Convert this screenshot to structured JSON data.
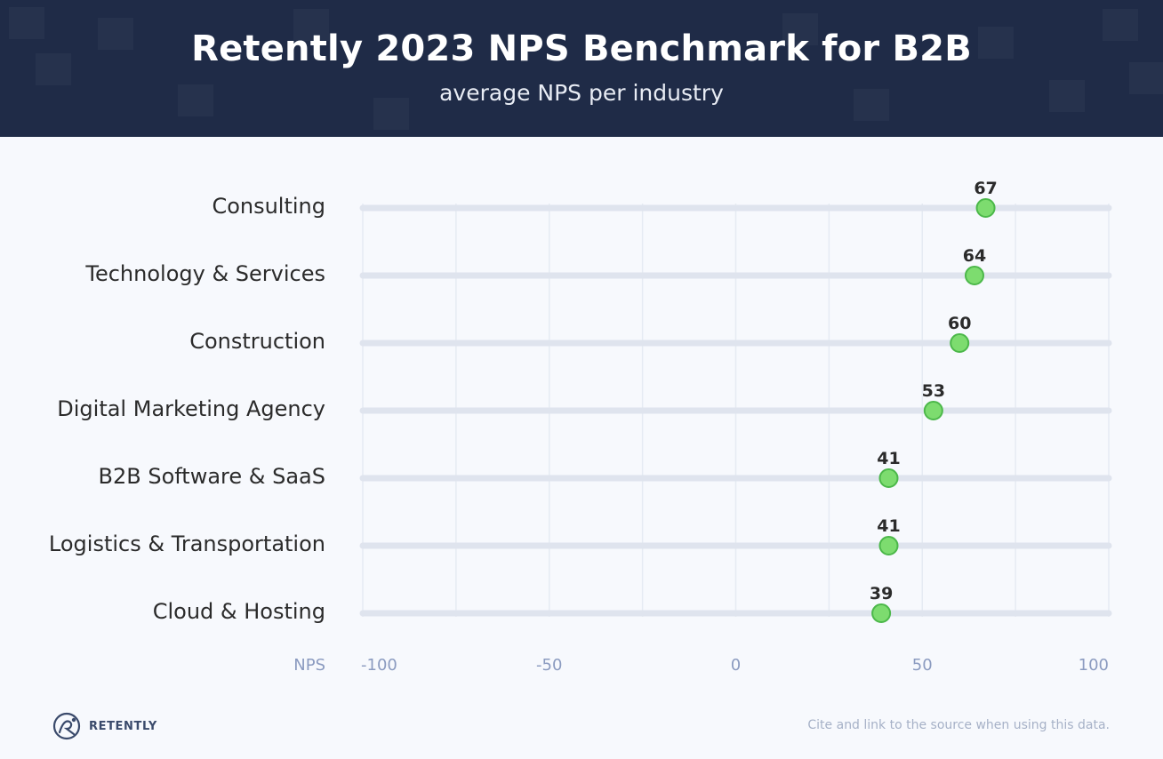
{
  "header": {
    "title": "Retently 2023 NPS Benchmark for B2B",
    "subtitle": "average NPS per industry"
  },
  "chart_data": {
    "type": "scatter",
    "orientation": "horizontal-dot",
    "xlabel": "NPS",
    "xlim": [
      -100,
      100
    ],
    "x_ticks": [
      -100,
      -50,
      0,
      50,
      100
    ],
    "grid": true,
    "categories": [
      "Consulting",
      "Technology & Services",
      "Construction",
      "Digital Marketing Agency",
      "B2B Software & SaaS",
      "Logistics & Transportation",
      "Cloud & Hosting"
    ],
    "values": [
      67,
      64,
      60,
      53,
      41,
      41,
      39
    ],
    "colors": {
      "point_fill": "#7ddc6f",
      "point_stroke": "#4cb84a",
      "track": "#dfe4ee",
      "grid": "#e6ebf3",
      "axis_text": "#8b9bc0",
      "label_text": "#2b2b2b"
    }
  },
  "footer": {
    "brand": "RETENTLY",
    "note": "Cite and link to the source when using this data."
  }
}
